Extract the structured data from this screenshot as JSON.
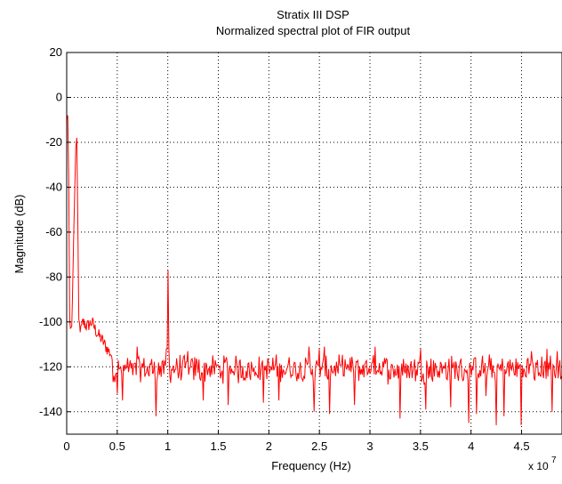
{
  "chart_data": {
    "type": "line",
    "title": "Stratix III DSP",
    "subtitle": "Normalized spectral plot of FIR output",
    "xlabel": "Frequency (Hz)",
    "ylabel": "Magnitude (dB)",
    "x_exponent_base": "x 10",
    "x_exponent_power": "7",
    "xlim": [
      0,
      4.9
    ],
    "ylim": [
      -150,
      20
    ],
    "xticks": [
      0,
      0.5,
      1,
      1.5,
      2,
      2.5,
      3,
      3.5,
      4,
      4.5
    ],
    "xtick_labels": [
      "0",
      "0.5",
      "1",
      "1.5",
      "2",
      "2.5",
      "3",
      "3.5",
      "4",
      "4.5"
    ],
    "yticks": [
      20,
      0,
      -20,
      -40,
      -60,
      -80,
      -100,
      -120,
      -140
    ],
    "ytick_labels": [
      "20",
      "0",
      "-20",
      "-40",
      "-60",
      "-80",
      "-100",
      "-120",
      "-140"
    ],
    "grid": true,
    "grid_style": "dotted",
    "line_color": "#ff0000",
    "series": [
      {
        "x": [
          0,
          0.01,
          0.02,
          0.03,
          0.05,
          0.07,
          0.09,
          0.1,
          0.11,
          0.12,
          0.14,
          0.16,
          0.2,
          0.25,
          0.3,
          0.35,
          0.4,
          0.45,
          0.5,
          0.6,
          0.7,
          0.8,
          0.9,
          0.97,
          0.99,
          1.0,
          1.01,
          1.03,
          1.1,
          1.3,
          1.5,
          1.7,
          1.9,
          2.1,
          2.3,
          2.5,
          2.7,
          2.9,
          3.1,
          3.3,
          3.5,
          3.7,
          3.9,
          4.1,
          4.3,
          4.5,
          4.7,
          4.9
        ],
        "y": [
          -10,
          -8,
          -35,
          -100,
          -105,
          -60,
          -22,
          -18,
          -55,
          -100,
          -104,
          -100,
          -102,
          -100,
          -105,
          -108,
          -112,
          -115,
          -114,
          -118,
          -120,
          -121,
          -122,
          -121,
          -118,
          -77,
          -115,
          -123,
          -120,
          -122,
          -121,
          -123,
          -122,
          -120,
          -121,
          -122,
          -121,
          -120,
          -122,
          -121,
          -122,
          -120,
          -121,
          -122,
          -120,
          -121,
          -121,
          -122
        ]
      }
    ],
    "noise": {
      "floor_x_start": 0.45,
      "floor_mean": -121,
      "floor_spread": 5,
      "dips": [
        [
          0.5,
          -132
        ],
        [
          0.55,
          -135
        ],
        [
          0.88,
          -142
        ],
        [
          1.35,
          -135
        ],
        [
          1.6,
          -137
        ],
        [
          1.95,
          -136
        ],
        [
          2.1,
          -135
        ],
        [
          2.45,
          -140
        ],
        [
          2.6,
          -141
        ],
        [
          2.85,
          -137
        ],
        [
          3.3,
          -143
        ],
        [
          3.55,
          -139
        ],
        [
          3.8,
          -138
        ],
        [
          3.98,
          -145
        ],
        [
          4.05,
          -141
        ],
        [
          4.15,
          -133
        ],
        [
          4.25,
          -146
        ],
        [
          4.33,
          -142
        ],
        [
          4.5,
          -146
        ],
        [
          4.6,
          -136
        ],
        [
          4.8,
          -140
        ]
      ],
      "peaks": [
        [
          0.7,
          -111
        ],
        [
          1.2,
          -113
        ],
        [
          2.4,
          -111
        ],
        [
          2.5,
          -112
        ],
        [
          2.55,
          -111
        ],
        [
          3.05,
          -111
        ],
        [
          3.5,
          -112
        ],
        [
          4.6,
          -113
        ],
        [
          4.75,
          -112
        ],
        [
          4.85,
          -113
        ]
      ]
    }
  }
}
